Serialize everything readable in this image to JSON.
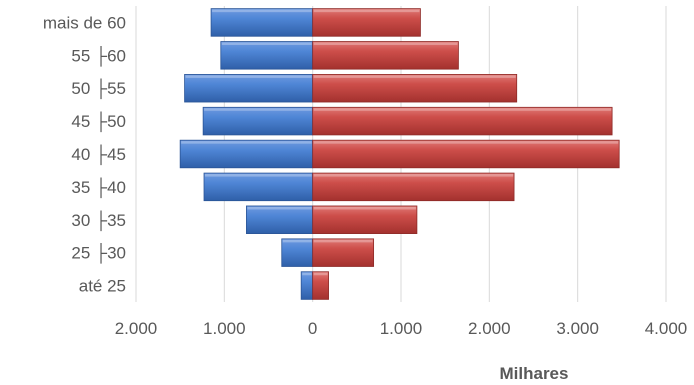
{
  "chart_data": {
    "type": "bar",
    "orientation": "horizontal",
    "style": "population-pyramid",
    "categories": [
      "até 25",
      "25 ├30",
      "30 ├35",
      "35 ├40",
      "40 ├45",
      "45 ├50",
      "50 ├55",
      "55 ├60",
      "mais de 60"
    ],
    "series": [
      {
        "color": "#4472c4",
        "values": [
          -0.13,
          -0.35,
          -0.75,
          -1.23,
          -1.5,
          -1.24,
          -1.45,
          -1.04,
          -1.15
        ]
      },
      {
        "color": "#c0504d",
        "values": [
          0.18,
          0.69,
          1.18,
          2.28,
          3.47,
          3.39,
          2.31,
          1.65,
          1.22
        ]
      }
    ],
    "xlim": [
      -2,
      4
    ],
    "xticks": [
      -2,
      -1,
      0,
      1,
      2,
      3,
      4
    ],
    "xtick_labels": [
      "2.000",
      "1.000",
      "0",
      "1.000",
      "2.000",
      "3.000",
      "4.000"
    ],
    "xlabel": "Milhares",
    "title": "",
    "ylabel": "",
    "grid": "vertical",
    "legend": "none"
  }
}
